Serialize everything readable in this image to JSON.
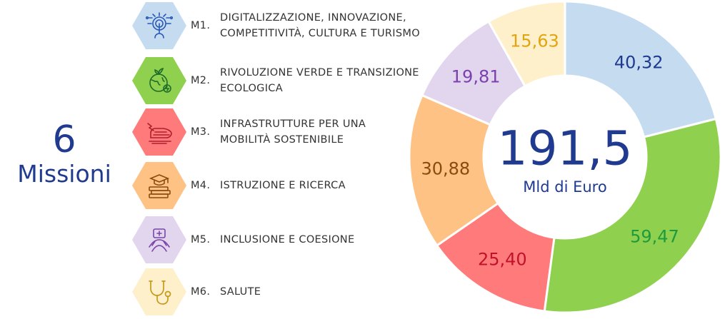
{
  "title": {
    "number": "6",
    "word": "Missioni"
  },
  "missions": [
    {
      "code": "M1.",
      "lines": [
        "DIGITALIZZAZIONE, INNOVAZIONE,",
        "COMPETITIVITÀ, CULTURA E TURISMO"
      ],
      "icon": "digital-hand-icon",
      "color": "#c5dcf0",
      "icon_color": "#2a58b8"
    },
    {
      "code": "M2.",
      "lines": [
        "RIVOLUZIONE VERDE E TRANSIZIONE",
        "ECOLOGICA"
      ],
      "icon": "green-earth-icon",
      "color": "#8fd14f",
      "icon_color": "#1e6b2a"
    },
    {
      "code": "M3.",
      "lines": [
        "INFRASTRUTTURE PER UNA",
        "MOBILITÀ SOSTENIBILE"
      ],
      "icon": "train-icon",
      "color": "#ff7b7b",
      "icon_color": "#b01d2e"
    },
    {
      "code": "M4.",
      "lines": [
        "ISTRUZIONE E RICERCA"
      ],
      "icon": "graduation-books-icon",
      "color": "#ffc285",
      "icon_color": "#8a4b12"
    },
    {
      "code": "M5.",
      "lines": [
        "INCLUSIONE E COESIONE"
      ],
      "icon": "joined-hands-icon",
      "color": "#e2d6ee",
      "icon_color": "#7b45a8"
    },
    {
      "code": "M6.",
      "lines": [
        "SALUTE"
      ],
      "icon": "stethoscope-icon",
      "color": "#fff0cc",
      "icon_color": "#c79a1a"
    }
  ],
  "chart_data": {
    "type": "pie",
    "donut": true,
    "center_value": "191,5",
    "center_unit": "Mld di Euro",
    "slices": [
      {
        "label": "40,32",
        "value": 40.32,
        "color": "#c5dcf0",
        "label_color": "#1f3a8f"
      },
      {
        "label": "59,47",
        "value": 59.47,
        "color": "#8fd14f",
        "label_color": "#1e9a3c"
      },
      {
        "label": "25,40",
        "value": 25.4,
        "color": "#ff7b7b",
        "label_color": "#c0132a"
      },
      {
        "label": "30,88",
        "value": 30.88,
        "color": "#ffc285",
        "label_color": "#8a4b12"
      },
      {
        "label": "19,81",
        "value": 19.81,
        "color": "#e2d6ee",
        "label_color": "#7b3fae"
      },
      {
        "label": "15,63",
        "value": 15.63,
        "color": "#fff0cc",
        "label_color": "#e0a510"
      }
    ]
  }
}
